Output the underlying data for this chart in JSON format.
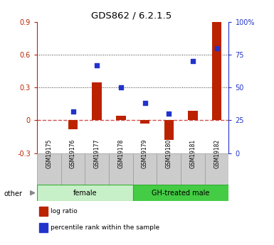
{
  "title": "GDS862 / 6.2.1.5",
  "samples": [
    "GSM19175",
    "GSM19176",
    "GSM19177",
    "GSM19178",
    "GSM19179",
    "GSM19180",
    "GSM19181",
    "GSM19182"
  ],
  "log_ratio": [
    0.0,
    -0.08,
    0.35,
    0.04,
    -0.03,
    -0.18,
    0.09,
    0.9
  ],
  "percentile_rank": [
    null,
    32,
    67,
    50,
    38,
    30,
    70,
    80
  ],
  "groups": [
    {
      "label": "female",
      "start": 0,
      "end": 4,
      "color": "#c8f0c8"
    },
    {
      "label": "GH-treated male",
      "start": 4,
      "end": 8,
      "color": "#44cc44"
    }
  ],
  "ylim_left": [
    -0.3,
    0.9
  ],
  "ylim_right": [
    0,
    100
  ],
  "yticks_left": [
    -0.3,
    0.0,
    0.3,
    0.6,
    0.9
  ],
  "ytick_labels_left": [
    "-0.3",
    "0",
    "0.3",
    "0.6",
    "0.9"
  ],
  "yticks_right": [
    0,
    25,
    50,
    75,
    100
  ],
  "ytick_labels_right": [
    "0",
    "25",
    "50",
    "75",
    "100%"
  ],
  "hlines_dotted": [
    0.3,
    0.6
  ],
  "zero_line_y": 0,
  "bar_color": "#bb2200",
  "dot_color": "#2233cc",
  "zero_line_color": "#cc3333",
  "hline_color": "#333333",
  "background_color": "#ffffff",
  "other_label": "other",
  "legend_log_ratio": "log ratio",
  "legend_percentile": "percentile rank within the sample",
  "sample_box_color": "#cccccc",
  "sample_box_edge": "#999999"
}
